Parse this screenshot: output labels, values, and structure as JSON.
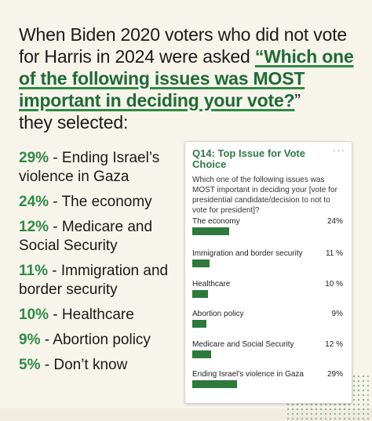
{
  "headline": {
    "intro": "When Biden 2020 voters who did not vote for Harris in 2024 were asked ",
    "question": "“Which one of the following issues was MOST important in deciding your vote?",
    "question_end": "”",
    "outro": "they selected:"
  },
  "list": [
    {
      "pct": "29%",
      "label": " - Ending Israel’s violence in Gaza"
    },
    {
      "pct": "24%",
      "label": " - The economy"
    },
    {
      "pct": "12%",
      "label": " - Medicare and Social Security"
    },
    {
      "pct": "11%",
      "label": " - Immigration and border security"
    },
    {
      "pct": "10%",
      "label": " - Healthcare"
    },
    {
      "pct": "9%",
      "label": " - Abortion policy"
    },
    {
      "pct": "5%",
      "label": " - Don’t know"
    }
  ],
  "card": {
    "title": "Q14: Top Issue for Vote Choice",
    "menu": "···",
    "question": "Which one of the following issues was MOST important in deciding your [vote for presidential candidate/decision to not to vote for president]?"
  },
  "chart_data": {
    "type": "bar",
    "title": "Q14: Top Issue for Vote Choice",
    "categories": [
      "The economy",
      "Immigration and border security",
      "Healthcare",
      "Abortion policy",
      "Medicare and Social Security",
      "Ending Israel's violence in Gaza"
    ],
    "values": [
      24,
      11,
      10,
      9,
      12,
      29
    ],
    "value_labels": [
      "24%",
      "11 %",
      "10 %",
      "9%",
      "12 %",
      "29%"
    ],
    "bar_color": "#2e7a3c",
    "xlim": [
      0,
      100
    ]
  }
}
